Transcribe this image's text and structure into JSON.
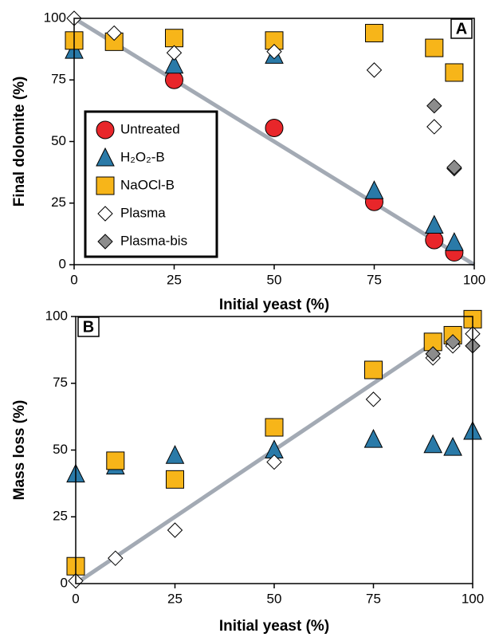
{
  "chart_data": [
    {
      "type": "scatter",
      "panel_label": "A",
      "xlabel": "Initial yeast (%)",
      "ylabel": "Final dolomite (%)",
      "xlim": [
        0,
        100
      ],
      "ylim": [
        0,
        100
      ],
      "xticks": [
        0,
        25,
        50,
        75,
        100
      ],
      "yticks": [
        0,
        25,
        50,
        75,
        100
      ],
      "legend": "lower left",
      "fit_line": {
        "x": [
          0,
          100
        ],
        "y": [
          100,
          0
        ],
        "color": "#a3aab4"
      },
      "series": [
        {
          "name": "Untreated",
          "color": "#e8262a",
          "marker": "circle",
          "x": [
            25,
            50,
            75,
            90,
            95
          ],
          "values": [
            75,
            55.5,
            25.5,
            10,
            5
          ]
        },
        {
          "name": "H₂O₂-B",
          "color": "#2a7aa8",
          "marker": "triangle",
          "x": [
            0,
            25,
            50,
            75,
            90,
            95
          ],
          "values": [
            87,
            81,
            85,
            30,
            16,
            9
          ]
        },
        {
          "name": "NaOCl-B",
          "color": "#f7b519",
          "marker": "square",
          "x": [
            0,
            10,
            25,
            50,
            75,
            90,
            95
          ],
          "values": [
            91,
            90.5,
            92,
            91,
            94,
            88,
            78
          ]
        },
        {
          "name": "Plasma",
          "color": "#ffffff",
          "marker": "diamond",
          "x": [
            0,
            10,
            25,
            50,
            75,
            90,
            95
          ],
          "values": [
            100,
            94,
            86,
            86.5,
            79,
            56,
            39
          ]
        },
        {
          "name": "Plasma-bis",
          "color": "#8c8c8c",
          "marker": "diamond",
          "x": [
            90,
            95
          ],
          "values": [
            64.5,
            39.5
          ]
        }
      ]
    },
    {
      "type": "scatter",
      "panel_label": "B",
      "xlabel": "Initial yeast (%)",
      "ylabel": "Mass loss (%)",
      "xlim": [
        0,
        100
      ],
      "ylim": [
        0,
        100
      ],
      "xticks": [
        0,
        25,
        50,
        75,
        100
      ],
      "yticks": [
        0,
        25,
        50,
        75,
        100
      ],
      "fit_line": {
        "x": [
          0,
          92
        ],
        "y": [
          0,
          92
        ],
        "color": "#a3aab4"
      },
      "series": [
        {
          "color": "#2a7aa8",
          "marker": "triangle",
          "x": [
            0,
            10,
            25,
            50,
            75,
            90,
            95,
            100
          ],
          "values": [
            41,
            44,
            48,
            50,
            54,
            52,
            51,
            57
          ]
        },
        {
          "color": "#f7b519",
          "marker": "square",
          "x": [
            0,
            10,
            25,
            50,
            75,
            90,
            95,
            100
          ],
          "values": [
            6.5,
            46,
            39,
            58.5,
            80,
            90.5,
            93,
            99
          ]
        },
        {
          "color": "#ffffff",
          "marker": "diamond",
          "x": [
            0,
            10,
            25,
            50,
            75,
            90,
            95,
            100
          ],
          "values": [
            1,
            9.5,
            20,
            45.5,
            69,
            84.5,
            89,
            93.5
          ]
        },
        {
          "color": "#8c8c8c",
          "marker": "diamond",
          "x": [
            90,
            95,
            100
          ],
          "values": [
            86,
            90.5,
            89
          ]
        }
      ]
    }
  ]
}
